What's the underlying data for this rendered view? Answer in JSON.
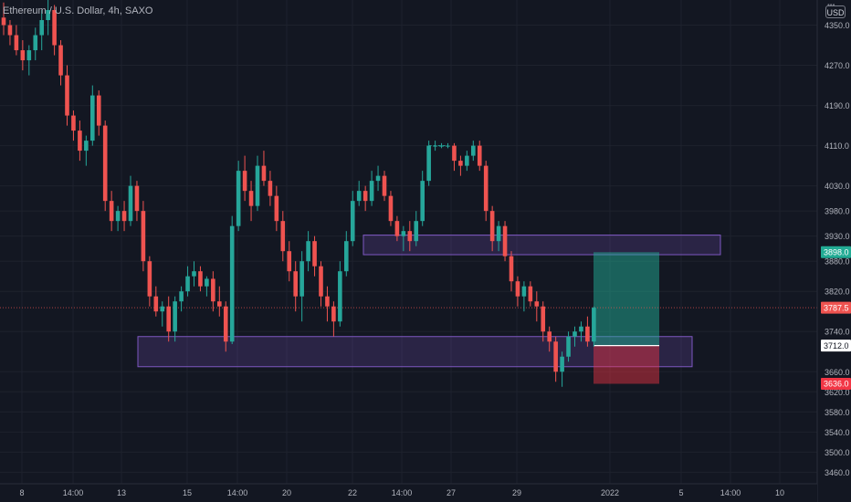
{
  "symbol": {
    "title": "Ethereum / U.S. Dollar, 4h, SAXO"
  },
  "currency": "USD",
  "colors": {
    "up": "#26a69a",
    "down": "#ef5350",
    "zone": "#7e57c2",
    "target": "#22ab94",
    "stop": "#f23645"
  },
  "chart_data": {
    "type": "candlestick",
    "ylim": [
      3437,
      4400
    ],
    "y_ticks": [
      4350.0,
      4270.0,
      4190.0,
      4110.0,
      4030.0,
      3980.0,
      3930.0,
      3880.0,
      3820.0,
      3740.0,
      3660.0,
      3620.0,
      3580.0,
      3540.0,
      3500.0,
      3460.0
    ],
    "x_ticks": [
      "8",
      "14:00",
      "13",
      "15",
      "14:00",
      "20",
      "22",
      "14:00",
      "27",
      "29",
      "2022",
      "5",
      "14:00",
      "10"
    ],
    "price_tags": [
      {
        "value": "3898.0",
        "price": 3898,
        "kind": "target"
      },
      {
        "value": "3787.5",
        "price": 3787.5,
        "kind": "last"
      },
      {
        "value": "3712.0",
        "price": 3712,
        "kind": "entry"
      },
      {
        "value": "3636.0",
        "price": 3636,
        "kind": "stop"
      }
    ],
    "zones": [
      {
        "name": "resistance-zone",
        "from": 3893,
        "to": 3932
      },
      {
        "name": "support-zone",
        "from": 3670,
        "to": 3730
      }
    ],
    "position": {
      "entry": 3712,
      "target": 3898,
      "stop": 3636
    },
    "candles": [
      [
        4365,
        4395,
        4330,
        4350
      ],
      [
        4350,
        4360,
        4310,
        4330
      ],
      [
        4330,
        4350,
        4290,
        4300
      ],
      [
        4300,
        4320,
        4260,
        4280
      ],
      [
        4280,
        4310,
        4250,
        4300
      ],
      [
        4300,
        4345,
        4280,
        4330
      ],
      [
        4330,
        4380,
        4300,
        4360
      ],
      [
        4360,
        4400,
        4330,
        4380
      ],
      [
        4380,
        4390,
        4290,
        4310
      ],
      [
        4310,
        4320,
        4230,
        4250
      ],
      [
        4250,
        4270,
        4150,
        4170
      ],
      [
        4170,
        4180,
        4120,
        4140
      ],
      [
        4140,
        4160,
        4080,
        4100
      ],
      [
        4100,
        4130,
        4070,
        4120
      ],
      [
        4120,
        4230,
        4110,
        4210
      ],
      [
        4210,
        4220,
        4130,
        4150
      ],
      [
        4150,
        4160,
        3980,
        4000
      ],
      [
        4000,
        4020,
        3940,
        3960
      ],
      [
        3960,
        3990,
        3940,
        3980
      ],
      [
        3980,
        4000,
        3940,
        3960
      ],
      [
        3960,
        4050,
        3950,
        4030
      ],
      [
        4030,
        4040,
        3960,
        3980
      ],
      [
        3980,
        4000,
        3860,
        3880
      ],
      [
        3880,
        3890,
        3790,
        3810
      ],
      [
        3810,
        3830,
        3770,
        3780
      ],
      [
        3780,
        3800,
        3750,
        3790
      ],
      [
        3790,
        3810,
        3720,
        3740
      ],
      [
        3740,
        3810,
        3720,
        3800
      ],
      [
        3800,
        3830,
        3780,
        3820
      ],
      [
        3820,
        3870,
        3810,
        3850
      ],
      [
        3850,
        3880,
        3830,
        3860
      ],
      [
        3860,
        3870,
        3820,
        3830
      ],
      [
        3830,
        3850,
        3810,
        3845
      ],
      [
        3845,
        3860,
        3780,
        3800
      ],
      [
        3800,
        3830,
        3770,
        3790
      ],
      [
        3790,
        3800,
        3700,
        3720
      ],
      [
        3720,
        3970,
        3715,
        3950
      ],
      [
        3950,
        4080,
        3940,
        4060
      ],
      [
        4060,
        4090,
        4000,
        4020
      ],
      [
        4020,
        4040,
        3960,
        3990
      ],
      [
        3990,
        4090,
        3980,
        4070
      ],
      [
        4070,
        4100,
        4030,
        4040
      ],
      [
        4040,
        4060,
        3990,
        4010
      ],
      [
        4010,
        4030,
        3940,
        3960
      ],
      [
        3960,
        3980,
        3880,
        3900
      ],
      [
        3900,
        3920,
        3840,
        3860
      ],
      [
        3860,
        3880,
        3780,
        3810
      ],
      [
        3810,
        3900,
        3760,
        3880
      ],
      [
        3880,
        3940,
        3860,
        3920
      ],
      [
        3920,
        3930,
        3850,
        3870
      ],
      [
        3870,
        3880,
        3790,
        3810
      ],
      [
        3810,
        3830,
        3760,
        3790
      ],
      [
        3790,
        3800,
        3730,
        3760
      ],
      [
        3760,
        3880,
        3750,
        3860
      ],
      [
        3860,
        3940,
        3850,
        3920
      ],
      [
        3920,
        4020,
        3910,
        4000
      ],
      [
        4000,
        4040,
        3990,
        4020
      ],
      [
        4020,
        4030,
        3980,
        4000
      ],
      [
        4000,
        4060,
        3990,
        4040
      ],
      [
        4040,
        4070,
        4020,
        4050
      ],
      [
        4050,
        4060,
        4000,
        4010
      ],
      [
        4010,
        4020,
        3950,
        3960
      ],
      [
        3960,
        3970,
        3920,
        3930
      ],
      [
        3930,
        3950,
        3900,
        3940
      ],
      [
        3940,
        3960,
        3900,
        3920
      ],
      [
        3920,
        3980,
        3910,
        3960
      ],
      [
        3960,
        4060,
        3950,
        4040
      ],
      [
        4040,
        4120,
        4030,
        4110
      ],
      [
        4110,
        4120,
        4100,
        4110
      ],
      [
        4110,
        4115,
        4105,
        4110
      ],
      [
        4110,
        4115,
        4105,
        4110
      ],
      [
        4110,
        4115,
        4060,
        4080
      ],
      [
        4080,
        4090,
        4050,
        4070
      ],
      [
        4070,
        4100,
        4060,
        4090
      ],
      [
        4090,
        4120,
        4080,
        4110
      ],
      [
        4110,
        4120,
        4060,
        4070
      ],
      [
        4070,
        4080,
        3960,
        3980
      ],
      [
        3980,
        3990,
        3900,
        3920
      ],
      [
        3920,
        3960,
        3900,
        3950
      ],
      [
        3950,
        3960,
        3880,
        3890
      ],
      [
        3890,
        3900,
        3820,
        3840
      ],
      [
        3840,
        3850,
        3790,
        3810
      ],
      [
        3810,
        3840,
        3780,
        3830
      ],
      [
        3830,
        3840,
        3790,
        3800
      ],
      [
        3800,
        3820,
        3760,
        3790
      ],
      [
        3790,
        3800,
        3720,
        3740
      ],
      [
        3740,
        3750,
        3700,
        3720
      ],
      [
        3720,
        3730,
        3640,
        3660
      ],
      [
        3660,
        3700,
        3630,
        3690
      ],
      [
        3690,
        3740,
        3680,
        3730
      ],
      [
        3730,
        3750,
        3710,
        3740
      ],
      [
        3740,
        3760,
        3720,
        3750
      ],
      [
        3750,
        3770,
        3710,
        3720
      ],
      [
        3720,
        3790,
        3710,
        3787.5
      ]
    ]
  }
}
